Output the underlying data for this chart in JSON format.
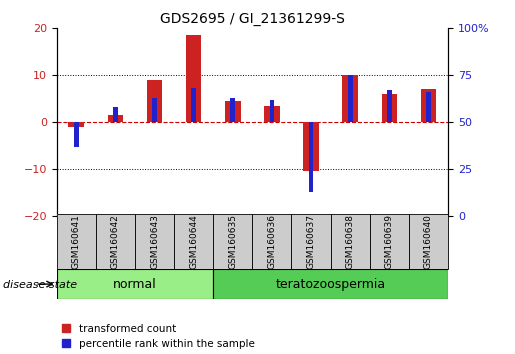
{
  "title": "GDS2695 / GI_21361299-S",
  "samples": [
    "GSM160641",
    "GSM160642",
    "GSM160643",
    "GSM160644",
    "GSM160635",
    "GSM160636",
    "GSM160637",
    "GSM160638",
    "GSM160639",
    "GSM160640"
  ],
  "groups": [
    "normal",
    "normal",
    "normal",
    "normal",
    "teratozoospermia",
    "teratozoospermia",
    "teratozoospermia",
    "teratozoospermia",
    "teratozoospermia",
    "teratozoospermia"
  ],
  "red_values": [
    -1.0,
    1.5,
    9.0,
    18.5,
    4.5,
    3.5,
    -10.5,
    10.0,
    6.0,
    7.0
  ],
  "blue_values_pct": [
    37,
    58,
    63,
    68,
    63,
    62,
    13,
    75,
    67,
    66
  ],
  "ylim_left": [
    -20,
    20
  ],
  "ylim_right": [
    0,
    100
  ],
  "yticks_left": [
    -20,
    -10,
    0,
    10,
    20
  ],
  "yticks_right": [
    0,
    25,
    50,
    75,
    100
  ],
  "ytick_labels_right": [
    "0",
    "25",
    "50",
    "75",
    "100%"
  ],
  "red_color": "#cc2222",
  "blue_color": "#2222cc",
  "zero_line_color": "#cc0000",
  "grid_color": "#000000",
  "bar_width": 0.4,
  "blue_bar_width": 0.12,
  "normal_color": "#99ee88",
  "teratozoospermia_color": "#55cc55",
  "sample_bg_color": "#cccccc",
  "legend_labels": [
    "transformed count",
    "percentile rank within the sample"
  ],
  "disease_state_label": "disease state",
  "group_normal_label": "normal",
  "group_teratozoospermia_label": "teratozoospermia"
}
